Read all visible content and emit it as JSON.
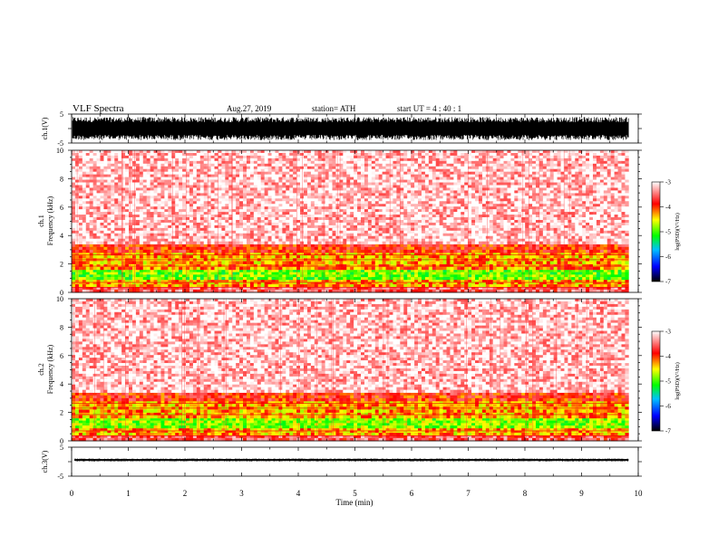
{
  "header": {
    "title": "VLF  Spectra",
    "date": "Aug.27, 2019",
    "station": "station= ATH",
    "start": "start  UT  =   4  : 40 : 1"
  },
  "chart_data": [
    {
      "type": "line",
      "panel": "ch1-waveform",
      "ylabel": "ch.1(V)",
      "ylim": [
        -5,
        5
      ],
      "yticks": [
        "5",
        "-5"
      ],
      "amplitude_range": [
        -4,
        4
      ],
      "xlim": [
        0,
        10
      ],
      "data_end_x": 9.83
    },
    {
      "type": "heatmap",
      "panel": "ch1-spectrogram",
      "ylabel": "ch.1\nFrequency  (kHz)",
      "ylim": [
        0,
        10
      ],
      "yticks": [
        "0",
        "2",
        "4",
        "6",
        "8",
        "10"
      ],
      "xlim": [
        0,
        10
      ],
      "data_end_x": 9.83,
      "colorbar": {
        "label": "log(PSD)(V²/Hz)",
        "range": [
          -7,
          -3
        ],
        "ticks": [
          "-3",
          "-4",
          "-5",
          "-6",
          "-7"
        ]
      },
      "bands": [
        {
          "from": 0.0,
          "to": 0.4,
          "level": -3.6
        },
        {
          "from": 0.4,
          "to": 0.9,
          "level": -4.3
        },
        {
          "from": 0.9,
          "to": 1.6,
          "level": -4.9
        },
        {
          "from": 1.6,
          "to": 2.0,
          "level": -4.2
        },
        {
          "from": 2.0,
          "to": 2.8,
          "level": -4.3
        },
        {
          "from": 2.8,
          "to": 3.4,
          "level": -3.9
        },
        {
          "from": 3.4,
          "to": 10.0,
          "level": -3.2
        }
      ]
    },
    {
      "type": "heatmap",
      "panel": "ch2-spectrogram",
      "ylabel": "ch.2\nFrequency  (kHz)",
      "ylim": [
        0,
        10
      ],
      "yticks": [
        "0",
        "2",
        "4",
        "6",
        "8",
        "10"
      ],
      "xlim": [
        0,
        10
      ],
      "data_end_x": 9.83,
      "colorbar": {
        "label": "log(PSD)(V²/Hz)",
        "range": [
          -7,
          -3
        ],
        "ticks": [
          "-3",
          "-4",
          "-5",
          "-6",
          "-7"
        ]
      },
      "bands": [
        {
          "from": 0.0,
          "to": 0.4,
          "level": -3.6
        },
        {
          "from": 0.4,
          "to": 0.9,
          "level": -4.3
        },
        {
          "from": 0.9,
          "to": 1.6,
          "level": -4.8
        },
        {
          "from": 1.6,
          "to": 2.0,
          "level": -4.3
        },
        {
          "from": 2.0,
          "to": 2.8,
          "level": -4.3
        },
        {
          "from": 2.8,
          "to": 3.4,
          "level": -3.9
        },
        {
          "from": 3.4,
          "to": 10.0,
          "level": -3.2
        }
      ]
    },
    {
      "type": "line",
      "panel": "ch3-waveform",
      "ylabel": "ch.3(V)",
      "ylim": [
        -5,
        5
      ],
      "yticks": [
        "5",
        "-5"
      ],
      "baseline": 0.6,
      "amplitude_range": [
        0.1,
        1.1
      ],
      "xlim": [
        0,
        10
      ],
      "data_end_x": 9.83,
      "xlabel": "Time  (min)",
      "xticks": [
        "0",
        "1",
        "2",
        "3",
        "4",
        "5",
        "6",
        "7",
        "8",
        "9",
        "10"
      ]
    }
  ],
  "colors": {
    "colormap": [
      "#000000",
      "#0000ff",
      "#00c0ff",
      "#00ff00",
      "#ffff00",
      "#ff0000",
      "#ffffff"
    ]
  }
}
